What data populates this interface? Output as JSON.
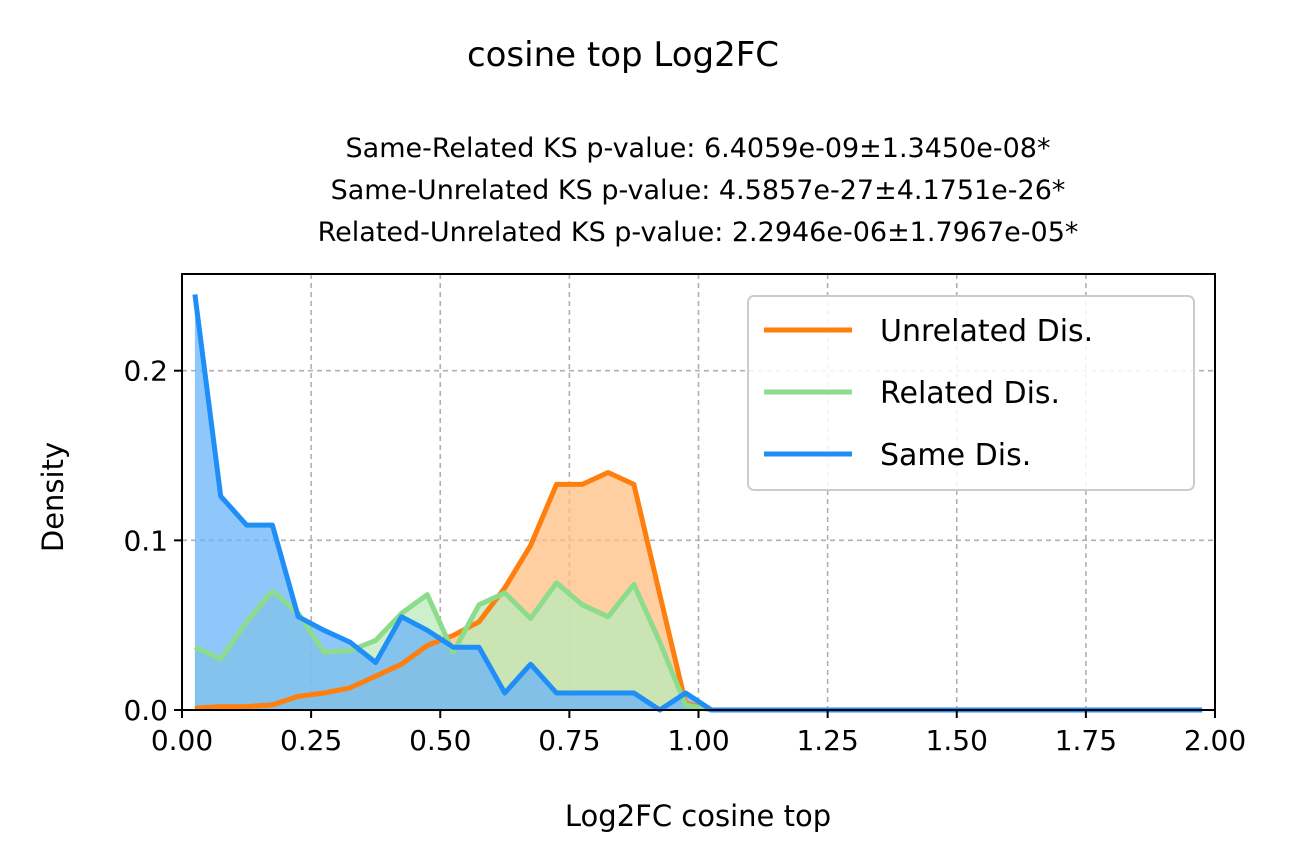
{
  "chart_data": {
    "type": "area",
    "suptitle": "cosine top Log2FC",
    "subtitle_lines": [
      "Same-Related KS p-value: 6.4059e-09±1.3450e-08*",
      "Same-Unrelated KS p-value: 4.5857e-27±4.1751e-26*",
      "Related-Unrelated KS p-value: 2.2946e-06±1.7967e-05*"
    ],
    "xlabel": "Log2FC cosine top",
    "ylabel": "Density",
    "xlim": [
      0.0,
      2.0
    ],
    "ylim": [
      0.0,
      0.257
    ],
    "xticks": [
      "0.00",
      "0.25",
      "0.50",
      "0.75",
      "1.00",
      "1.25",
      "1.50",
      "1.75",
      "2.00"
    ],
    "yticks": [
      "0.0",
      "0.1",
      "0.2"
    ],
    "grid": true,
    "legend_position": "top-right",
    "series": [
      {
        "name": "Unrelated Dis.",
        "color": "#ff7f0e",
        "fill": "#ffbe82",
        "x": [
          0.025,
          0.075,
          0.125,
          0.175,
          0.225,
          0.275,
          0.325,
          0.375,
          0.425,
          0.475,
          0.525,
          0.575,
          0.625,
          0.675,
          0.725,
          0.775,
          0.825,
          0.875,
          0.925,
          0.975,
          1.025,
          1.075,
          1.125,
          1.175,
          1.225,
          1.275,
          1.325,
          1.375,
          1.425,
          1.475,
          1.525,
          1.575,
          1.625,
          1.675,
          1.725,
          1.775,
          1.825,
          1.875,
          1.925,
          1.975
        ],
        "y": [
          0.001,
          0.002,
          0.002,
          0.003,
          0.008,
          0.01,
          0.013,
          0.02,
          0.027,
          0.038,
          0.044,
          0.052,
          0.072,
          0.097,
          0.133,
          0.133,
          0.14,
          0.133,
          0.068,
          0.004,
          0,
          0,
          0,
          0,
          0,
          0,
          0,
          0,
          0,
          0,
          0,
          0,
          0,
          0,
          0,
          0,
          0,
          0,
          0,
          0
        ]
      },
      {
        "name": "Related Dis.",
        "color": "#8cdc8c",
        "fill": "#b9ebb9",
        "x": [
          0.025,
          0.075,
          0.125,
          0.175,
          0.225,
          0.275,
          0.325,
          0.375,
          0.425,
          0.475,
          0.525,
          0.575,
          0.625,
          0.675,
          0.725,
          0.775,
          0.825,
          0.875,
          0.925,
          0.975,
          1.025,
          1.075,
          1.125,
          1.175,
          1.225,
          1.275,
          1.325,
          1.375,
          1.425,
          1.475,
          1.525,
          1.575,
          1.625,
          1.675,
          1.725,
          1.775,
          1.825,
          1.875,
          1.925,
          1.975
        ],
        "y": [
          0.037,
          0.03,
          0.052,
          0.07,
          0.057,
          0.034,
          0.035,
          0.041,
          0.057,
          0.068,
          0.034,
          0.062,
          0.069,
          0.054,
          0.075,
          0.062,
          0.055,
          0.074,
          0.04,
          0.003,
          0,
          0,
          0,
          0,
          0,
          0,
          0,
          0,
          0,
          0,
          0,
          0,
          0,
          0,
          0,
          0,
          0,
          0,
          0,
          0
        ]
      },
      {
        "name": "Same Dis.",
        "color": "#1f8ff7",
        "fill": "#6bb4f8",
        "x": [
          0.025,
          0.075,
          0.125,
          0.175,
          0.225,
          0.275,
          0.325,
          0.375,
          0.425,
          0.475,
          0.525,
          0.575,
          0.625,
          0.675,
          0.725,
          0.775,
          0.825,
          0.875,
          0.925,
          0.975,
          1.025,
          1.075,
          1.125,
          1.175,
          1.225,
          1.275,
          1.325,
          1.375,
          1.425,
          1.475,
          1.525,
          1.575,
          1.625,
          1.675,
          1.725,
          1.775,
          1.825,
          1.875,
          1.925,
          1.975
        ],
        "y": [
          0.245,
          0.126,
          0.109,
          0.109,
          0.055,
          0.047,
          0.04,
          0.028,
          0.055,
          0.047,
          0.037,
          0.037,
          0.01,
          0.027,
          0.01,
          0.01,
          0.01,
          0.01,
          0.0,
          0.01,
          0,
          0,
          0,
          0,
          0,
          0,
          0,
          0,
          0,
          0,
          0,
          0,
          0,
          0,
          0,
          0,
          0,
          0,
          0,
          0
        ]
      }
    ]
  }
}
